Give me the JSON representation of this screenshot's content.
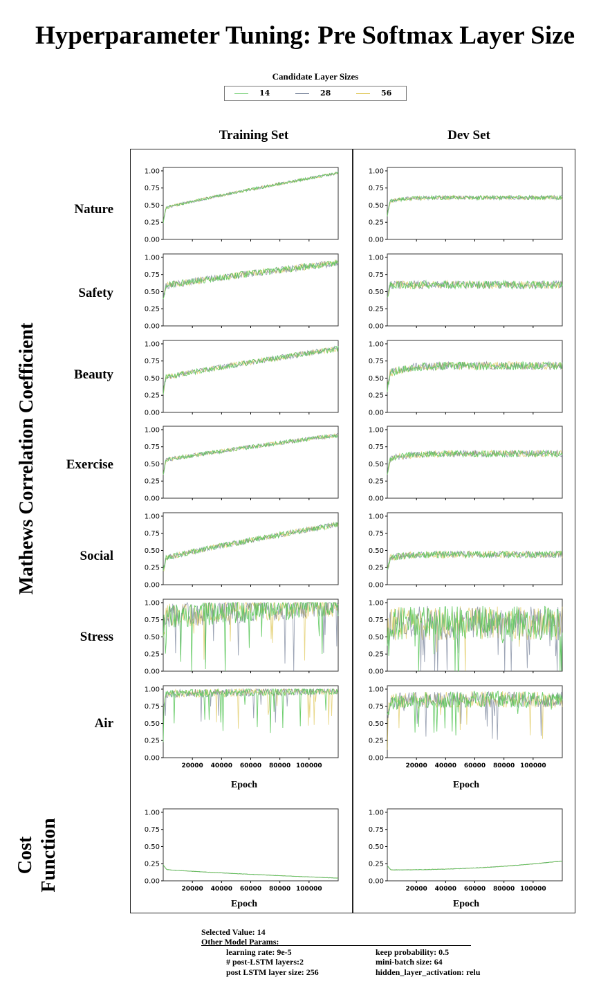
{
  "title": "Hyperparameter Tuning: Pre Softmax Layer Size",
  "legend": {
    "title": "Candidate Layer Sizes",
    "entries": [
      {
        "label": "14",
        "color": "#5cc85c"
      },
      {
        "label": "28",
        "color": "#4a5a78"
      },
      {
        "label": "56",
        "color": "#d6b624"
      }
    ]
  },
  "columns": [
    "Training Set",
    "Dev Set"
  ],
  "y_axis_mcc": "Mathews Correlation Coefficient",
  "y_axis_cost": [
    "Cost",
    "Function"
  ],
  "x_axis_label": "Epoch",
  "rows": [
    "Nature",
    "Safety",
    "Beauty",
    "Exercise",
    "Social",
    "Stress",
    "Air"
  ],
  "footer": {
    "selected": "Selected Value: 14",
    "other_heading": "Other Model Params:",
    "params_left": [
      "learning rate: 9e-5",
      "# post-LSTM layers:2",
      "post LSTM layer size: 256"
    ],
    "params_right": [
      "keep probability: 0.5",
      "mini-batch size: 64",
      "hidden_layer_activation: relu"
    ]
  },
  "chart_data": {
    "type": "line",
    "x_range": [
      0,
      120000
    ],
    "y_range": [
      0,
      1.05
    ],
    "y_ticks": [
      0.0,
      0.25,
      0.5,
      0.75,
      1.0
    ],
    "y_tick_labels": [
      "0.00",
      "0.25",
      "0.50",
      "0.75",
      "1.00"
    ],
    "x_ticks": [
      20000,
      40000,
      60000,
      80000,
      100000
    ],
    "x_tick_labels": [
      "20000",
      "40000",
      "60000",
      "80000",
      "100000"
    ],
    "series_names": [
      "14",
      "28",
      "56"
    ],
    "series_colors": [
      "#5cc85c",
      "#4a5a78",
      "#d6b624"
    ],
    "panels": {
      "Nature": {
        "train": {
          "start": 0.45,
          "end": 0.97,
          "noise": 0.02
        },
        "dev": {
          "start": 0.55,
          "end": 0.61,
          "noise": 0.03
        }
      },
      "Safety": {
        "train": {
          "start": 0.58,
          "end": 0.92,
          "noise": 0.05
        },
        "dev": {
          "start": 0.6,
          "end": 0.6,
          "noise": 0.06
        }
      },
      "Beauty": {
        "train": {
          "start": 0.5,
          "end": 0.93,
          "noise": 0.04
        },
        "dev": {
          "start": 0.55,
          "end": 0.68,
          "noise": 0.06
        }
      },
      "Exercise": {
        "train": {
          "start": 0.55,
          "end": 0.92,
          "noise": 0.03
        },
        "dev": {
          "start": 0.55,
          "end": 0.65,
          "noise": 0.05
        }
      },
      "Social": {
        "train": {
          "start": 0.38,
          "end": 0.88,
          "noise": 0.04
        },
        "dev": {
          "start": 0.38,
          "end": 0.44,
          "noise": 0.05
        }
      },
      "Stress": {
        "train": {
          "start": 0.8,
          "end": 0.97,
          "noise": 0.18
        },
        "dev": {
          "start": 0.7,
          "end": 0.7,
          "noise": 0.25
        }
      },
      "Air": {
        "train": {
          "start": 0.93,
          "end": 0.98,
          "noise": 0.06
        },
        "dev": {
          "start": 0.8,
          "end": 0.85,
          "noise": 0.12
        }
      },
      "Cost": {
        "train": {
          "start": 0.17,
          "end": 0.04,
          "noise": 0.003
        },
        "dev": {
          "start": 0.16,
          "end": 0.29,
          "noise": 0.004
        }
      }
    }
  }
}
